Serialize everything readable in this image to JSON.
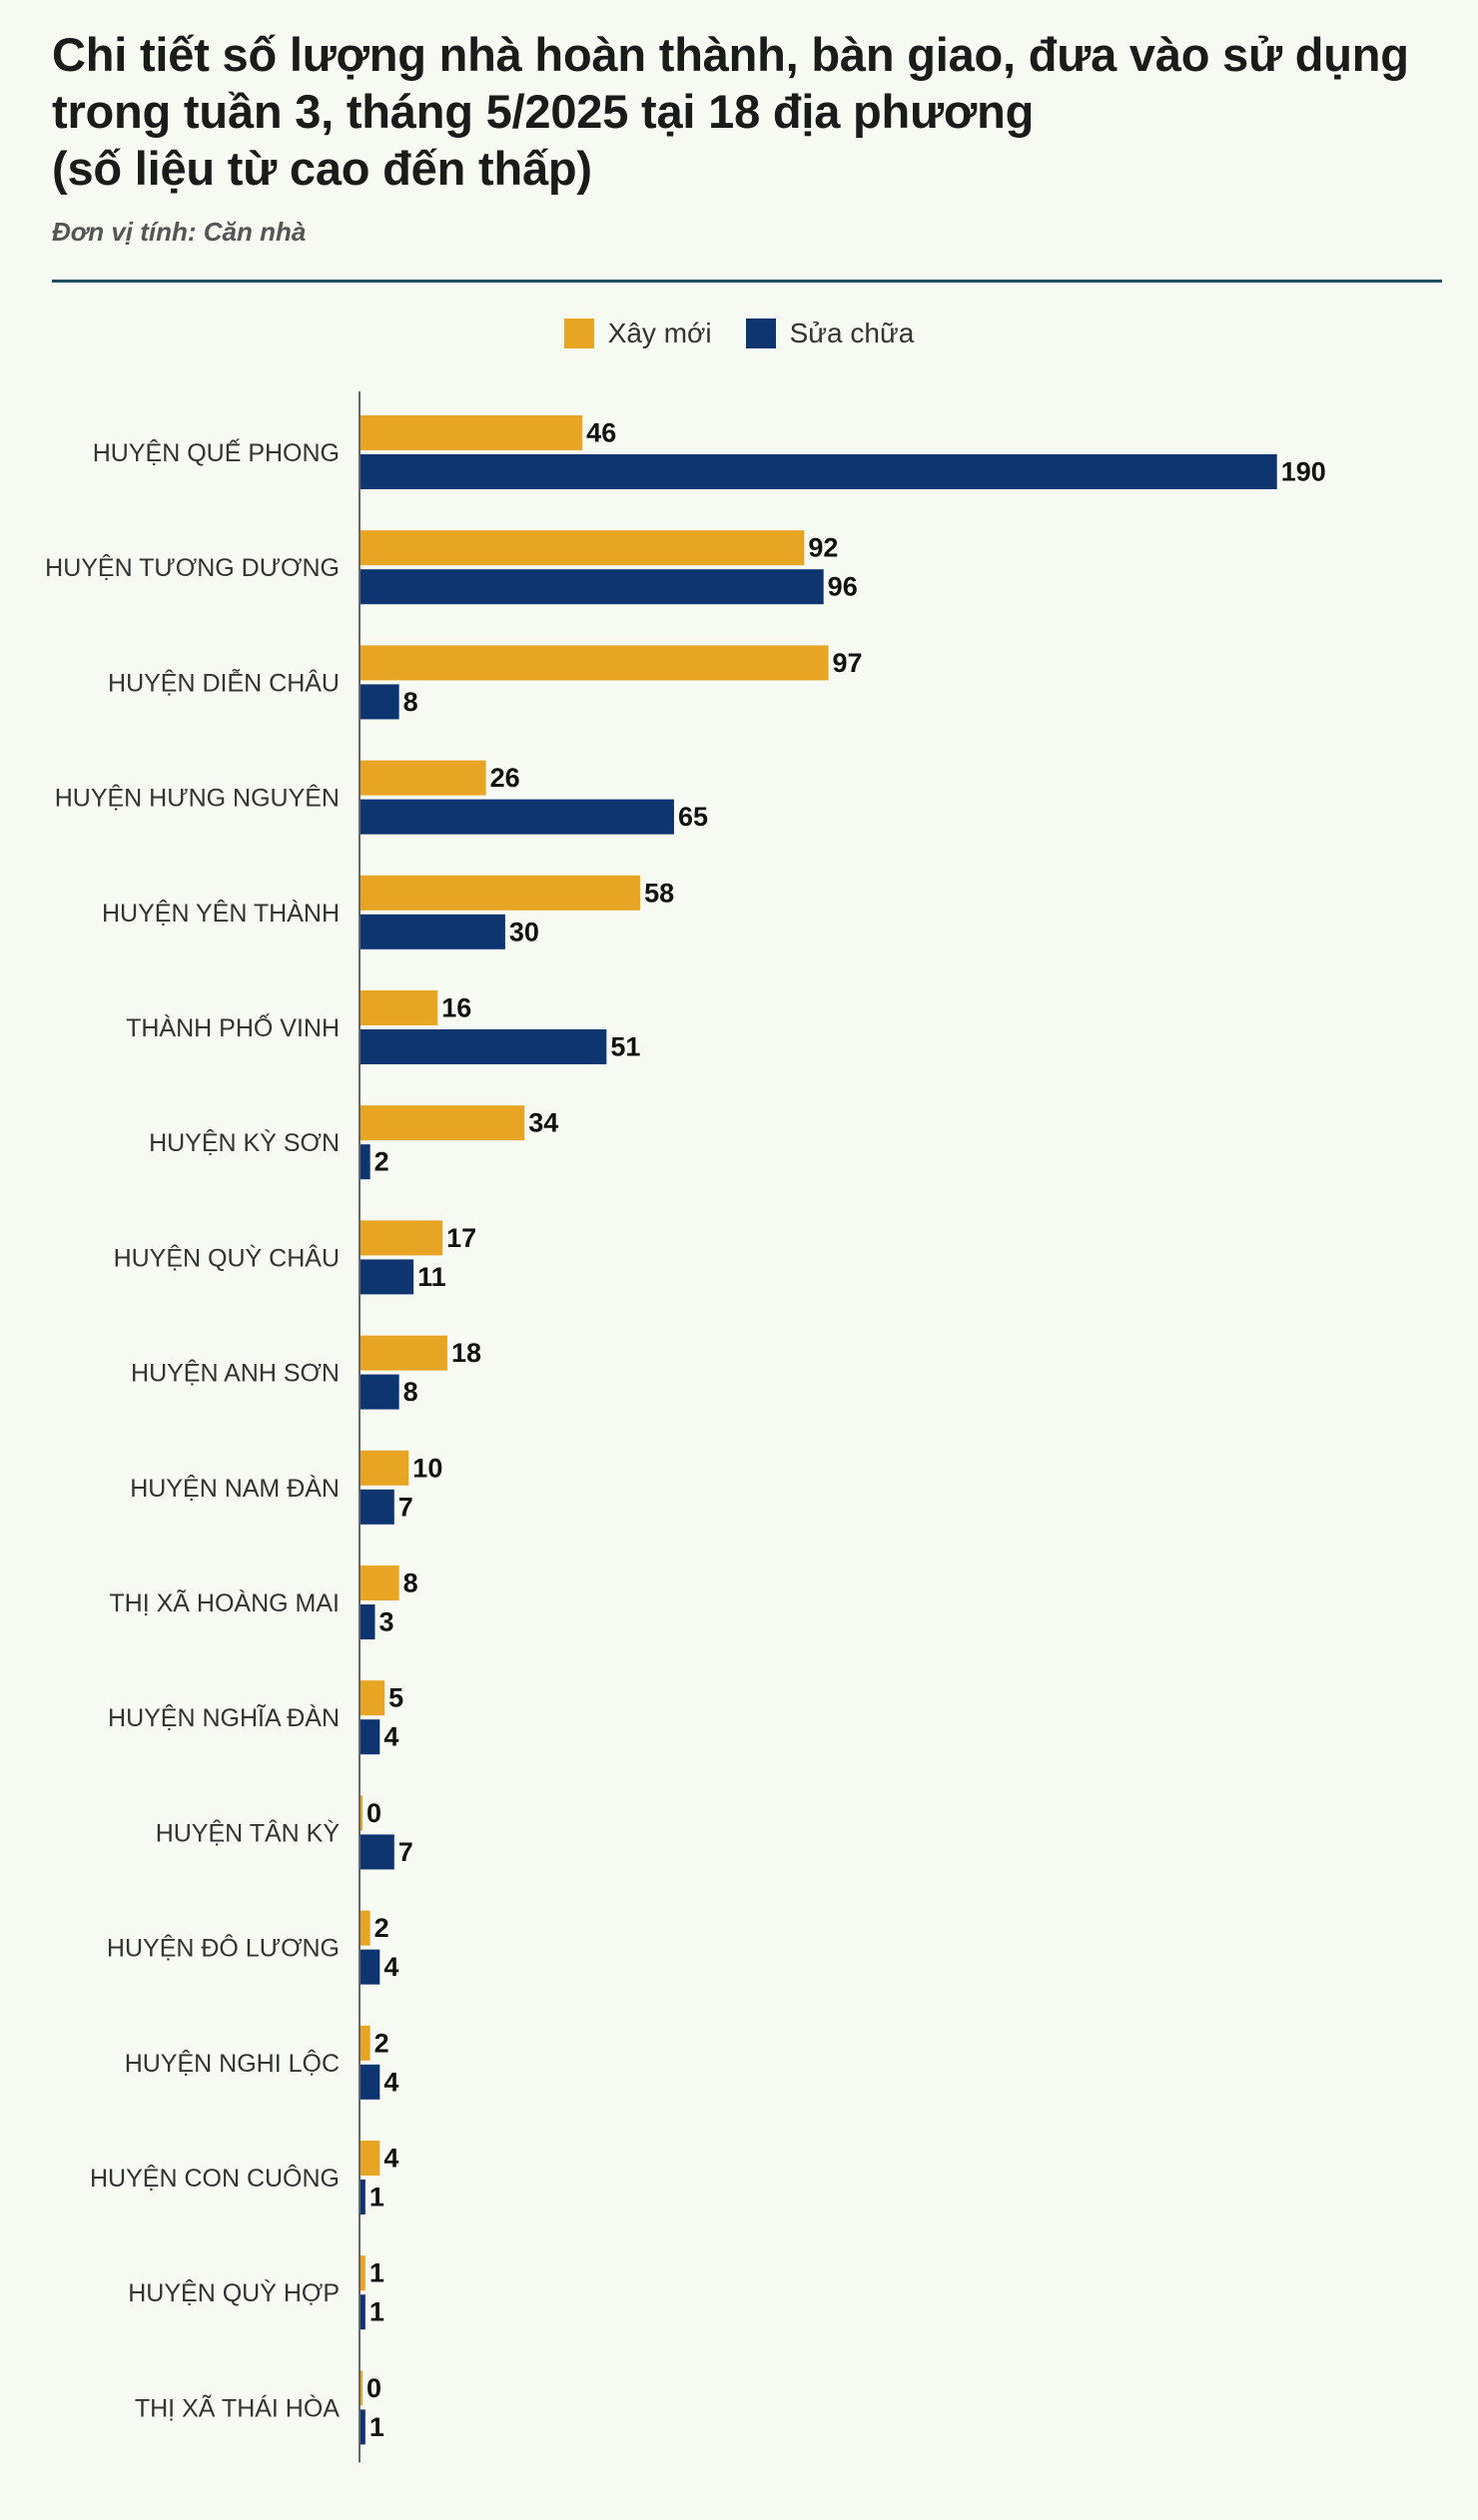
{
  "header": {
    "title_line1": "Chi tiết số lượng nhà hoàn thành, bàn giao, đưa vào sử dụng",
    "title_line2": "trong tuần 3, tháng 5/2025 tại 18 địa phương",
    "title_line3": "(số liệu từ cao đến thấp)",
    "unit": "Đơn vị tính: Căn nhà"
  },
  "legend": [
    {
      "name": "Xây mới",
      "color": "#e8a523"
    },
    {
      "name": "Sửa chữa",
      "color": "#0e3570"
    }
  ],
  "chart_data": {
    "type": "bar",
    "orientation": "horizontal",
    "categories": [
      "HUYỆN QUẾ PHONG",
      "HUYỆN TƯƠNG DƯƠNG",
      "HUYỆN DIỄN CHÂU",
      "HUYỆN HƯNG NGUYÊN",
      "HUYỆN YÊN THÀNH",
      "THÀNH PHỐ VINH",
      "HUYỆN KỲ SƠN",
      "HUYỆN QUỲ CHÂU",
      "HUYỆN ANH SƠN",
      "HUYỆN NAM ĐÀN",
      "THỊ XÃ HOÀNG MAI",
      "HUYỆN NGHĨA ĐÀN",
      "HUYỆN TÂN KỲ",
      "HUYỆN ĐÔ LƯƠNG",
      "HUYỆN NGHI LỘC",
      "HUYỆN CON CUÔNG",
      "HUYỆN QUỲ HỢP",
      "THỊ XÃ THÁI HÒA"
    ],
    "series": [
      {
        "name": "Xây mới",
        "color": "#e8a523",
        "values": [
          46,
          92,
          97,
          26,
          58,
          16,
          34,
          17,
          18,
          10,
          8,
          5,
          0,
          2,
          2,
          4,
          1,
          0
        ]
      },
      {
        "name": "Sửa chữa",
        "color": "#0e3570",
        "values": [
          190,
          96,
          8,
          65,
          30,
          51,
          2,
          11,
          8,
          7,
          3,
          4,
          7,
          4,
          4,
          1,
          1,
          1
        ]
      }
    ],
    "data_labels": true,
    "grid": false,
    "legend_position": "top-center"
  }
}
